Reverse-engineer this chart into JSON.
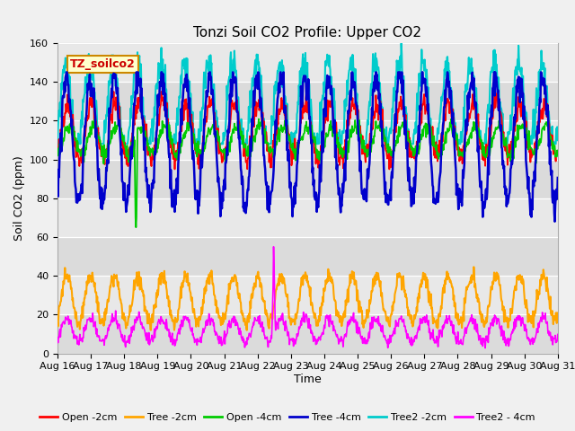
{
  "title": "Tonzi Soil CO2 Profile: Upper CO2",
  "ylabel": "Soil CO2 (ppm)",
  "xlabel": "Time",
  "legend_label": "TZ_soilco2",
  "legend_entries": [
    "Open -2cm",
    "Tree -2cm",
    "Open -4cm",
    "Tree -4cm",
    "Tree2 -2cm",
    "Tree2 - 4cm"
  ],
  "colors": {
    "open_2cm": "#ff0000",
    "tree_2cm": "#ffa500",
    "open_4cm": "#00cc00",
    "tree_4cm": "#0000cc",
    "tree2_2cm": "#00cccc",
    "tree2_4cm": "#ff00ff"
  },
  "fig_bg": "#f0f0f0",
  "plot_bg_light": "#e8e8e8",
  "plot_bg_dark": "#d8d8d8",
  "ylim": [
    0,
    160
  ],
  "yticks": [
    0,
    20,
    40,
    60,
    80,
    100,
    120,
    140,
    160
  ],
  "day_start": 16,
  "day_end": 31,
  "title_fontsize": 11,
  "axis_label_fontsize": 9,
  "tick_fontsize": 8,
  "annot_text_color": "#cc0000",
  "annot_bg": "#ffffcc",
  "annot_edge": "#cc8800"
}
